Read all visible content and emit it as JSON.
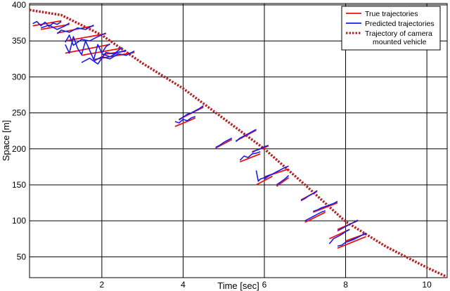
{
  "chart_data": {
    "type": "line",
    "title": "",
    "xlabel": "Time [sec]",
    "ylabel": "Space [m]",
    "xlim": [
      0.22,
      10.5
    ],
    "ylim": [
      21,
      402
    ],
    "xticks": [
      2,
      4,
      6,
      8,
      10
    ],
    "yticks": [
      50,
      100,
      150,
      200,
      250,
      300,
      350,
      400
    ],
    "grid": true,
    "legend": {
      "placement": "top-right",
      "entries": [
        {
          "label": "True trajectories",
          "color": "#ee1111",
          "style": "solid"
        },
        {
          "label": "Predicted trajectories",
          "color": "#1a1aee",
          "style": "solid"
        },
        {
          "label": "Trajectory of camera",
          "label2": "mounted vehicle",
          "color": "#b22222",
          "style": "dotted"
        }
      ]
    },
    "colors": {
      "true": "#ee1111",
      "predicted": "#1a1aee",
      "camera": "#b22222",
      "grid": "#000000"
    },
    "camera_trajectory": {
      "x": [
        0.22,
        1.0,
        2.0,
        3.0,
        4.0,
        5.0,
        6.0,
        7.0,
        8.0,
        9.0,
        10.0,
        10.5
      ],
      "y": [
        393,
        386,
        358,
        319,
        284,
        242,
        200,
        150,
        99,
        64,
        35,
        22
      ]
    },
    "series": [
      {
        "group": "true",
        "x": [
          0.3,
          1.0
        ],
        "y": [
          371,
          378
        ]
      },
      {
        "group": "true",
        "x": [
          0.5,
          1.2
        ],
        "y": [
          366,
          373
        ]
      },
      {
        "group": "true",
        "x": [
          0.9,
          1.8
        ],
        "y": [
          361,
          371
        ]
      },
      {
        "group": "true",
        "x": [
          1.1,
          2.1
        ],
        "y": [
          350,
          360
        ]
      },
      {
        "group": "true",
        "x": [
          1.1,
          2.2
        ],
        "y": [
          333,
          345
        ]
      },
      {
        "group": "true",
        "x": [
          1.5,
          2.5
        ],
        "y": [
          330,
          340
        ]
      },
      {
        "group": "true",
        "x": [
          1.8,
          2.8
        ],
        "y": [
          324,
          334
        ]
      },
      {
        "group": "true",
        "x": [
          2.0,
          2.6
        ],
        "y": [
          331,
          336
        ]
      },
      {
        "group": "true",
        "x": [
          3.8,
          4.3
        ],
        "y": [
          231,
          243
        ]
      },
      {
        "group": "true",
        "x": [
          3.9,
          4.5
        ],
        "y": [
          241,
          258
        ]
      },
      {
        "group": "true",
        "x": [
          4.8,
          5.2
        ],
        "y": [
          201,
          213
        ]
      },
      {
        "group": "true",
        "x": [
          5.3,
          5.8
        ],
        "y": [
          211,
          226
        ]
      },
      {
        "group": "true",
        "x": [
          5.4,
          5.9
        ],
        "y": [
          182,
          193
        ]
      },
      {
        "group": "true",
        "x": [
          5.7,
          6.1
        ],
        "y": [
          196,
          204
        ]
      },
      {
        "group": "true",
        "x": [
          5.8,
          6.2
        ],
        "y": [
          150,
          162
        ]
      },
      {
        "group": "true",
        "x": [
          6.0,
          6.6
        ],
        "y": [
          161,
          172
        ]
      },
      {
        "group": "true",
        "x": [
          6.3,
          6.6
        ],
        "y": [
          148,
          160
        ]
      },
      {
        "group": "true",
        "x": [
          6.9,
          7.3
        ],
        "y": [
          129,
          141
        ]
      },
      {
        "group": "true",
        "x": [
          7.0,
          7.5
        ],
        "y": [
          98,
          112
        ]
      },
      {
        "group": "true",
        "x": [
          7.2,
          7.8
        ],
        "y": [
          112,
          125
        ]
      },
      {
        "group": "true",
        "x": [
          7.6,
          8.1
        ],
        "y": [
          75,
          88
        ]
      },
      {
        "group": "true",
        "x": [
          7.8,
          8.3
        ],
        "y": [
          88,
          100
        ]
      },
      {
        "group": "true",
        "x": [
          7.8,
          8.5
        ],
        "y": [
          62,
          78
        ]
      },
      {
        "group": "true",
        "x": [
          8.0,
          8.5
        ],
        "y": [
          72,
          82
        ]
      },
      {
        "group": "predicted",
        "x": [
          0.3,
          0.4,
          0.5,
          0.6,
          0.7,
          0.8,
          0.9,
          1.0
        ],
        "y": [
          374,
          377,
          371,
          376,
          370,
          375,
          373,
          377
        ]
      },
      {
        "group": "predicted",
        "x": [
          0.5,
          0.7,
          0.9,
          1.1,
          1.2
        ],
        "y": [
          368,
          372,
          366,
          371,
          375
        ]
      },
      {
        "group": "predicted",
        "x": [
          0.9,
          1.0,
          1.2,
          1.4,
          1.6,
          1.8
        ],
        "y": [
          360,
          365,
          362,
          368,
          366,
          372
        ]
      },
      {
        "group": "predicted",
        "x": [
          1.1,
          1.2,
          1.3,
          1.5,
          1.7,
          1.9,
          2.1
        ],
        "y": [
          348,
          358,
          344,
          352,
          350,
          356,
          361
        ]
      },
      {
        "group": "predicted",
        "x": [
          1.1,
          1.2,
          1.3,
          1.4,
          1.5,
          1.6,
          1.7,
          1.8,
          1.9,
          2.0,
          2.1,
          2.2
        ],
        "y": [
          345,
          333,
          356,
          340,
          331,
          350,
          337,
          324,
          345,
          333,
          342,
          346
        ]
      },
      {
        "group": "predicted",
        "x": [
          1.5,
          1.7,
          1.9,
          2.1,
          2.3,
          2.5
        ],
        "y": [
          320,
          326,
          318,
          334,
          332,
          341
        ]
      },
      {
        "group": "predicted",
        "x": [
          1.8,
          2.0,
          2.2,
          2.4,
          2.6,
          2.8
        ],
        "y": [
          322,
          328,
          325,
          332,
          330,
          336
        ]
      },
      {
        "group": "predicted",
        "x": [
          2.0,
          2.2,
          2.4,
          2.6
        ],
        "y": [
          332,
          328,
          334,
          337
        ]
      },
      {
        "group": "predicted",
        "x": [
          3.8,
          3.9,
          4.0,
          4.1,
          4.2,
          4.3
        ],
        "y": [
          238,
          236,
          241,
          239,
          243,
          245
        ]
      },
      {
        "group": "predicted",
        "x": [
          3.9,
          4.0,
          4.1,
          4.2,
          4.3,
          4.4,
          4.5
        ],
        "y": [
          240,
          244,
          248,
          250,
          253,
          256,
          260
        ]
      },
      {
        "group": "predicted",
        "x": [
          4.8,
          4.9,
          5.0,
          5.1,
          5.2
        ],
        "y": [
          202,
          205,
          209,
          212,
          215
        ]
      },
      {
        "group": "predicted",
        "x": [
          5.3,
          5.4,
          5.5,
          5.6,
          5.7,
          5.8
        ],
        "y": [
          210,
          215,
          218,
          221,
          224,
          227
        ]
      },
      {
        "group": "predicted",
        "x": [
          5.4,
          5.5,
          5.6,
          5.7,
          5.8,
          5.9
        ],
        "y": [
          184,
          190,
          188,
          193,
          194,
          196
        ]
      },
      {
        "group": "predicted",
        "x": [
          5.7,
          5.8,
          5.9,
          6.0,
          6.1
        ],
        "y": [
          195,
          198,
          200,
          203,
          205
        ]
      },
      {
        "group": "predicted",
        "x": [
          5.8,
          5.85,
          5.9,
          6.0,
          6.1,
          6.2
        ],
        "y": [
          170,
          155,
          158,
          160,
          163,
          165
        ]
      },
      {
        "group": "predicted",
        "x": [
          6.0,
          6.1,
          6.2,
          6.3,
          6.4,
          6.5,
          6.6
        ],
        "y": [
          158,
          162,
          165,
          168,
          171,
          174,
          176
        ]
      },
      {
        "group": "predicted",
        "x": [
          6.3,
          6.4,
          6.5,
          6.6
        ],
        "y": [
          150,
          154,
          158,
          163
        ]
      },
      {
        "group": "predicted",
        "x": [
          6.9,
          7.0,
          7.1,
          7.2,
          7.3
        ],
        "y": [
          128,
          131,
          135,
          138,
          142
        ]
      },
      {
        "group": "predicted",
        "x": [
          7.0,
          7.1,
          7.2,
          7.3,
          7.4,
          7.5
        ],
        "y": [
          100,
          103,
          106,
          109,
          112,
          114
        ]
      },
      {
        "group": "predicted",
        "x": [
          7.2,
          7.3,
          7.4,
          7.5,
          7.6,
          7.7,
          7.8
        ],
        "y": [
          113,
          115,
          118,
          120,
          122,
          124,
          127
        ]
      },
      {
        "group": "predicted",
        "x": [
          7.6,
          7.7,
          7.8,
          7.9,
          8.0,
          8.1
        ],
        "y": [
          68,
          75,
          78,
          81,
          85,
          88
        ]
      },
      {
        "group": "predicted",
        "x": [
          7.8,
          7.9,
          8.0,
          8.1,
          8.2,
          8.3
        ],
        "y": [
          86,
          89,
          92,
          95,
          98,
          101
        ]
      },
      {
        "group": "predicted",
        "x": [
          7.8,
          7.9,
          8.0,
          8.1,
          8.2,
          8.3,
          8.4,
          8.5
        ],
        "y": [
          65,
          66,
          70,
          72,
          75,
          77,
          80,
          83
        ]
      },
      {
        "group": "predicted",
        "x": [
          8.0,
          8.1,
          8.2,
          8.3,
          8.4,
          8.5
        ],
        "y": [
          70,
          72,
          74,
          77,
          80,
          82
        ]
      }
    ]
  }
}
